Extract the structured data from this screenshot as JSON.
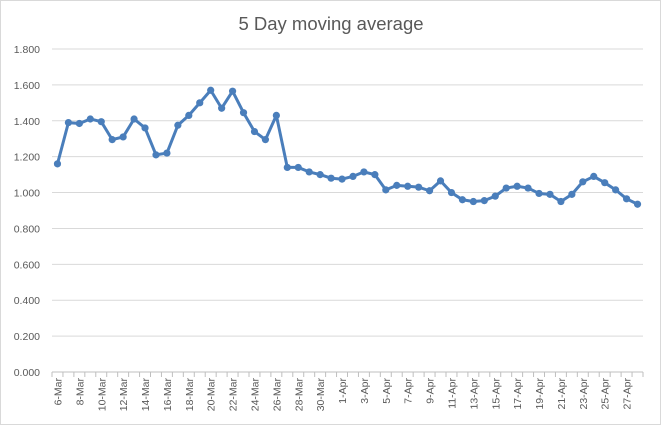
{
  "chart_data": {
    "type": "line",
    "title": "5 Day moving average",
    "xlabel": "",
    "ylabel": "",
    "ylim": [
      0,
      1.8
    ],
    "y_ticks": [
      "0.000",
      "0.200",
      "0.400",
      "0.600",
      "0.800",
      "1.000",
      "1.200",
      "1.400",
      "1.600",
      "1.800"
    ],
    "grid": true,
    "legend": "none",
    "colors": {
      "series": "#4a7ebb",
      "grid": "#d9d9d9",
      "text": "#595959"
    },
    "x": [
      "6-Mar",
      "7-Mar",
      "8-Mar",
      "9-Mar",
      "10-Mar",
      "11-Mar",
      "12-Mar",
      "13-Mar",
      "14-Mar",
      "15-Mar",
      "16-Mar",
      "17-Mar",
      "18-Mar",
      "19-Mar",
      "20-Mar",
      "21-Mar",
      "22-Mar",
      "23-Mar",
      "24-Mar",
      "25-Mar",
      "26-Mar",
      "27-Mar",
      "28-Mar",
      "29-Mar",
      "30-Mar",
      "31-Mar",
      "1-Apr",
      "2-Apr",
      "3-Apr",
      "4-Apr",
      "5-Apr",
      "6-Apr",
      "7-Apr",
      "8-Apr",
      "9-Apr",
      "10-Apr",
      "11-Apr",
      "12-Apr",
      "13-Apr",
      "14-Apr",
      "15-Apr",
      "16-Apr",
      "17-Apr",
      "18-Apr",
      "19-Apr",
      "20-Apr",
      "21-Apr",
      "22-Apr",
      "23-Apr",
      "24-Apr",
      "25-Apr",
      "26-Apr",
      "27-Apr",
      "28-Apr"
    ],
    "x_tick_labels": [
      "6-Mar",
      "8-Mar",
      "10-Mar",
      "12-Mar",
      "14-Mar",
      "16-Mar",
      "18-Mar",
      "20-Mar",
      "22-Mar",
      "24-Mar",
      "26-Mar",
      "28-Mar",
      "30-Mar",
      "1-Apr",
      "3-Apr",
      "5-Apr",
      "7-Apr",
      "9-Apr",
      "11-Apr",
      "13-Apr",
      "15-Apr",
      "17-Apr",
      "19-Apr",
      "21-Apr",
      "23-Apr",
      "25-Apr",
      "27-Apr"
    ],
    "series": [
      {
        "values": [
          1.16,
          1.39,
          1.385,
          1.41,
          1.395,
          1.295,
          1.31,
          1.41,
          1.36,
          1.21,
          1.22,
          1.375,
          1.43,
          1.5,
          1.57,
          1.47,
          1.565,
          1.445,
          1.34,
          1.295,
          1.43,
          1.14,
          1.14,
          1.115,
          1.1,
          1.08,
          1.075,
          1.09,
          1.115,
          1.1,
          1.015,
          1.04,
          1.035,
          1.03,
          1.01,
          1.065,
          1.0,
          0.96,
          0.95,
          0.955,
          0.98,
          1.025,
          1.035,
          1.025,
          0.995,
          0.99,
          0.95,
          0.99,
          1.06,
          1.09,
          1.055,
          1.015,
          0.965,
          0.935
        ]
      }
    ]
  }
}
